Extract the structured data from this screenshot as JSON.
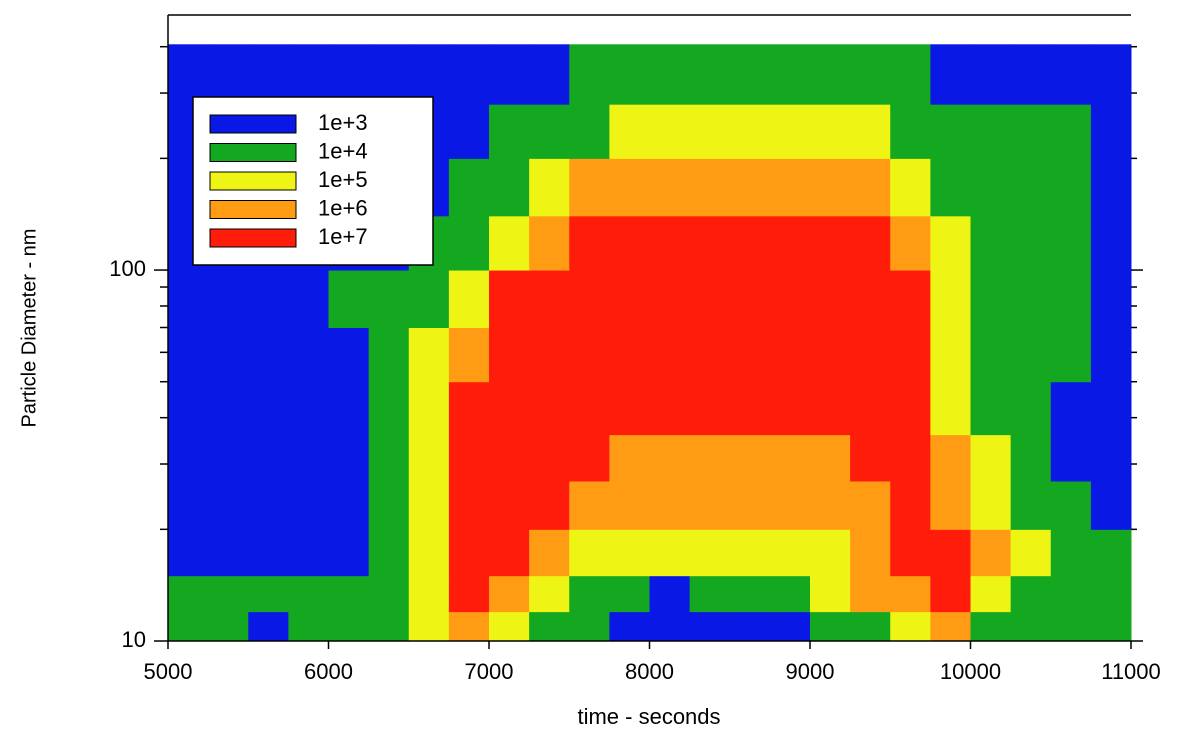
{
  "chart_data": {
    "type": "contour",
    "xlabel": "time - seconds",
    "ylabel": "Particle Diameter - nm",
    "xlim": [
      5000,
      11000
    ],
    "xticks": [
      5000,
      6000,
      7000,
      8000,
      9000,
      10000,
      11000
    ],
    "ylim": [
      10,
      487
    ],
    "yscale": "log",
    "yticks": [
      10,
      100
    ],
    "yminorticks": [
      20,
      30,
      40,
      50,
      60,
      70,
      80,
      90,
      200,
      300,
      400
    ],
    "legend": "upper left",
    "levels": [
      {
        "value": 1000,
        "label": "1e+3",
        "color": "#0a18e6"
      },
      {
        "value": 10000,
        "label": "1e+4",
        "color": "#14a820"
      },
      {
        "value": 100000,
        "label": "1e+5",
        "color": "#eef514"
      },
      {
        "value": 1000000,
        "label": "1e+6",
        "color": "#ff9c14"
      },
      {
        "value": 10000000,
        "label": "1e+7",
        "color": "#ff1c0a"
      }
    ],
    "x_edges": [
      5000,
      5250,
      5500,
      5750,
      6000,
      6250,
      6500,
      6750,
      7000,
      7250,
      7500,
      7750,
      8000,
      8250,
      8500,
      8750,
      9000,
      9250,
      9500,
      9750,
      10000,
      10250,
      10500,
      10750,
      11000
    ],
    "y_edges": [
      10,
      12,
      15,
      20,
      27,
      36,
      50,
      70,
      100,
      140,
      200,
      280,
      406
    ],
    "z": [
      [
        10000,
        10000,
        1000,
        10000,
        10000,
        10000,
        100000,
        1000000,
        100000,
        10000,
        10000,
        1000,
        1000,
        1000,
        1000,
        1000,
        10000,
        10000,
        100000,
        1000000,
        10000,
        10000,
        10000,
        10000
      ],
      [
        10000,
        10000,
        10000,
        10000,
        10000,
        10000,
        100000,
        10000000,
        1000000,
        100000,
        10000,
        10000,
        1000,
        10000,
        10000,
        10000,
        100000,
        1000000,
        1000000,
        10000000,
        100000,
        10000,
        10000,
        10000
      ],
      [
        1000,
        1000,
        1000,
        1000,
        1000,
        10000,
        100000,
        10000000,
        10000000,
        1000000,
        100000,
        100000,
        100000,
        100000,
        100000,
        100000,
        100000,
        1000000,
        10000000,
        10000000,
        1000000,
        100000,
        10000,
        10000
      ],
      [
        1000,
        1000,
        1000,
        1000,
        1000,
        10000,
        100000,
        10000000,
        10000000,
        10000000,
        1000000,
        1000000,
        1000000,
        1000000,
        1000000,
        1000000,
        1000000,
        1000000,
        10000000,
        1000000,
        100000,
        10000,
        10000,
        1000
      ],
      [
        1000,
        1000,
        1000,
        1000,
        1000,
        10000,
        100000,
        10000000,
        10000000,
        10000000,
        10000000,
        1000000,
        1000000,
        1000000,
        1000000,
        1000000,
        1000000,
        10000000,
        10000000,
        1000000,
        100000,
        10000,
        1000,
        1000
      ],
      [
        1000,
        1000,
        1000,
        1000,
        1000,
        10000,
        100000,
        10000000,
        10000000,
        10000000,
        10000000,
        10000000,
        10000000,
        10000000,
        10000000,
        10000000,
        10000000,
        10000000,
        10000000,
        100000,
        10000,
        10000,
        1000,
        1000
      ],
      [
        1000,
        1000,
        1000,
        1000,
        1000,
        10000,
        100000,
        1000000,
        10000000,
        10000000,
        10000000,
        10000000,
        10000000,
        10000000,
        10000000,
        10000000,
        10000000,
        10000000,
        10000000,
        100000,
        10000,
        10000,
        10000,
        1000
      ],
      [
        1000,
        1000,
        1000,
        1000,
        10000,
        10000,
        10000,
        100000,
        10000000,
        10000000,
        10000000,
        10000000,
        10000000,
        10000000,
        10000000,
        10000000,
        10000000,
        10000000,
        10000000,
        100000,
        10000,
        10000,
        10000,
        1000
      ],
      [
        1000,
        1000,
        1000,
        1000,
        1000,
        1000,
        10000,
        10000,
        100000,
        1000000,
        10000000,
        10000000,
        10000000,
        10000000,
        10000000,
        10000000,
        10000000,
        10000000,
        1000000,
        100000,
        10000,
        10000,
        10000,
        1000
      ],
      [
        1000,
        1000,
        1000,
        1000,
        1000,
        1000,
        1000,
        10000,
        10000,
        100000,
        1000000,
        1000000,
        1000000,
        1000000,
        1000000,
        1000000,
        1000000,
        1000000,
        100000,
        10000,
        10000,
        10000,
        10000,
        1000
      ],
      [
        1000,
        1000,
        1000,
        1000,
        1000,
        1000,
        1000,
        1000,
        10000,
        10000,
        10000,
        100000,
        100000,
        100000,
        100000,
        100000,
        100000,
        100000,
        10000,
        10000,
        10000,
        10000,
        10000,
        1000
      ],
      [
        1000,
        1000,
        1000,
        1000,
        1000,
        1000,
        1000,
        1000,
        1000,
        1000,
        10000,
        10000,
        10000,
        10000,
        10000,
        10000,
        10000,
        10000,
        10000,
        1000,
        1000,
        1000,
        1000,
        1000
      ]
    ]
  }
}
